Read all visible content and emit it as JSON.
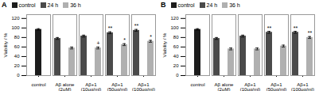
{
  "chart_data": [
    {
      "type": "bar",
      "title": "A",
      "categories": [
        "control",
        "Aβ alone\n(2μM)",
        "Aβ+1\n(10μg/ml)",
        "Aβ+1\n(50μg/ml)",
        "Aβ+1\n(100μg/ml)"
      ],
      "series": [
        {
          "name": "control",
          "color": "#1c1c1c",
          "values": [
            97,
            null,
            null,
            null,
            null
          ],
          "errors": [
            1.5,
            null,
            null,
            null,
            null
          ]
        },
        {
          "name": "24 h",
          "color": "#4a4a4a",
          "values": [
            null,
            78,
            83,
            90,
            95
          ],
          "errors": [
            null,
            2,
            2,
            2,
            2
          ],
          "stars": [
            null,
            null,
            null,
            "**",
            "**"
          ]
        },
        {
          "name": "36 h",
          "color": "#b0b0b0",
          "values": [
            null,
            58,
            58,
            65,
            72
          ],
          "errors": [
            null,
            2,
            2,
            2,
            2
          ],
          "stars": [
            null,
            null,
            "+",
            "*",
            "*"
          ]
        }
      ],
      "ylabel": "Viability / %",
      "ylim": [
        0,
        128
      ],
      "yticks": [
        0,
        20,
        40,
        60,
        80,
        100,
        120
      ],
      "legend": "upper left"
    },
    {
      "type": "bar",
      "title": "B",
      "categories": [
        "control",
        "Aβ alone\n(2μM)",
        "Aβ+1\n(10μg/ml)",
        "Aβ+1\n(50μg/ml)",
        "Aβ+1\n(100μg/ml)"
      ],
      "series": [
        {
          "name": "control",
          "color": "#1c1c1c",
          "values": [
            97,
            null,
            null,
            null,
            null
          ],
          "errors": [
            1.5,
            null,
            null,
            null,
            null
          ]
        },
        {
          "name": "24 h",
          "color": "#4a4a4a",
          "values": [
            null,
            78,
            83,
            91,
            91
          ],
          "errors": [
            null,
            2,
            2,
            2,
            2
          ],
          "stars": [
            null,
            null,
            null,
            "**",
            "**"
          ]
        },
        {
          "name": "36 h",
          "color": "#b0b0b0",
          "values": [
            null,
            56,
            56,
            62,
            80
          ],
          "errors": [
            null,
            2,
            2,
            2,
            2
          ],
          "stars": [
            null,
            null,
            null,
            null,
            "**"
          ]
        }
      ],
      "ylabel": "Viability / %",
      "ylim": [
        0,
        128
      ],
      "yticks": [
        0,
        20,
        40,
        60,
        80,
        100,
        120
      ],
      "legend": "upper left"
    }
  ]
}
